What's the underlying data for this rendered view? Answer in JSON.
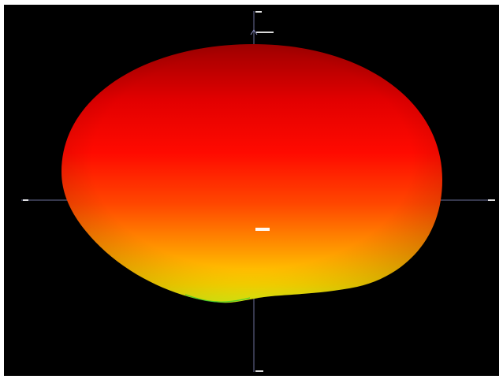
{
  "viewer": {
    "background": "#000000",
    "frame_color": "#ffffff",
    "axis_color": "#6b6f9a",
    "label_color": "#ffffff"
  },
  "surface": {
    "shape": "ellipsoid",
    "gradient": [
      "#a30000",
      "#ff0000",
      "#ff3a00",
      "#ff8a00",
      "#ffd400",
      "#f2ff00"
    ],
    "rim_color": "#33cc33"
  },
  "labels": {
    "axis_top": "",
    "axis_top_value": "",
    "axis_left": "",
    "axis_right": "",
    "axis_bottom": "",
    "center": ""
  }
}
